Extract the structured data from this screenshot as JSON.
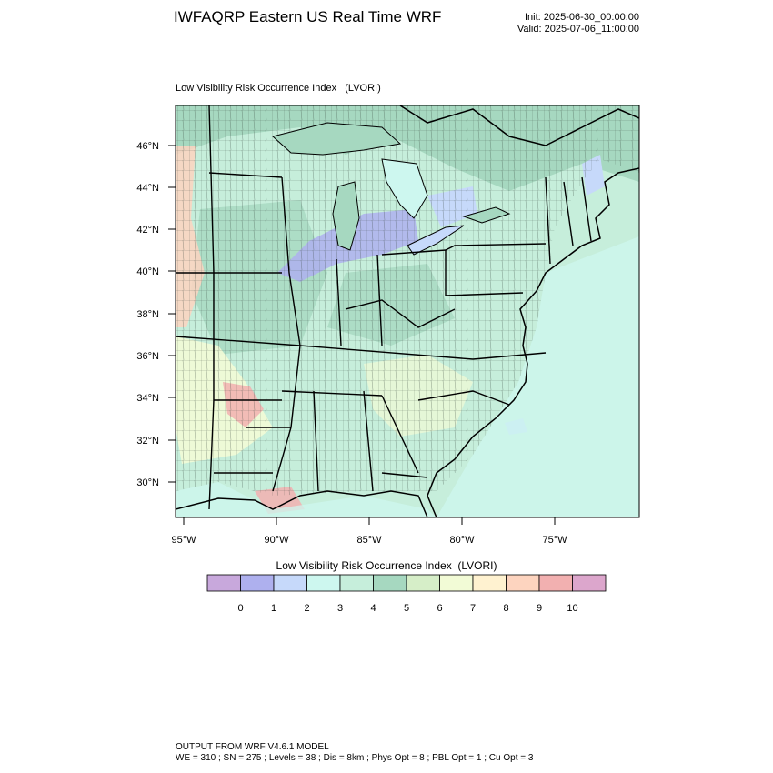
{
  "header": {
    "title": "IWFAQRP Eastern US Real Time WRF",
    "init": "Init: 2025-06-30_00:00:00",
    "valid": "Valid: 2025-07-06_11:00:00"
  },
  "map": {
    "subtitle": "Low Visibility Risk Occurrence Index   (LVORI)",
    "lat_labels": [
      "46°N",
      "44°N",
      "42°N",
      "40°N",
      "38°N",
      "36°N",
      "34°N",
      "32°N",
      "30°N"
    ],
    "lon_labels": [
      "95°W",
      "90°W",
      "85°W",
      "80°W",
      "75°W"
    ]
  },
  "legend": {
    "title": "Low Visibility Risk Occurrence Index  (LVORI)",
    "colors": [
      "#c8a8dc",
      "#aeb0ee",
      "#c6d9fa",
      "#cdf7ef",
      "#c6eedb",
      "#a6d8c0",
      "#d6eec8",
      "#f2fbd6",
      "#fff2d0",
      "#fdd4bf",
      "#f2b0b0",
      "#dca6cc"
    ],
    "labels": [
      "0",
      "1",
      "2",
      "3",
      "4",
      "5",
      "6",
      "7",
      "8",
      "9",
      "10"
    ]
  },
  "footer": {
    "line1": "OUTPUT FROM WRF V4.6.1 MODEL",
    "line2": "WE = 310 ; SN = 275 ; Levels = 38 ; Dis = 8km ; Phys Opt = 8 ; PBL Opt = 1 ; Cu Opt = 3"
  }
}
